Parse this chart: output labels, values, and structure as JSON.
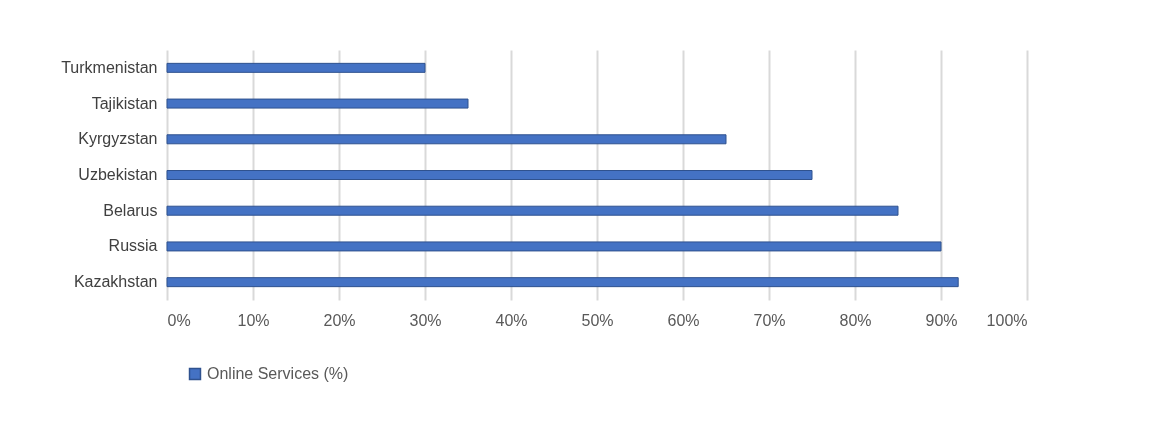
{
  "chart_data": {
    "type": "bar",
    "orientation": "horizontal",
    "categories": [
      "Turkmenistan",
      "Tajikistan",
      "Kyrgyzstan",
      "Uzbekistan",
      "Belarus",
      "Russia",
      "Kazakhstan"
    ],
    "series": [
      {
        "name": "Online Services (%)",
        "color": "#4472c4",
        "values": [
          30,
          35,
          65,
          75,
          85,
          90,
          92
        ]
      }
    ],
    "xlim": [
      0,
      100
    ],
    "xticks": [
      {
        "value": 0,
        "label": "0%"
      },
      {
        "value": 10,
        "label": "10%"
      },
      {
        "value": 20,
        "label": "20%"
      },
      {
        "value": 30,
        "label": "30%"
      },
      {
        "value": 40,
        "label": "40%"
      },
      {
        "value": 50,
        "label": "50%"
      },
      {
        "value": 60,
        "label": "60%"
      },
      {
        "value": 70,
        "label": "70%"
      },
      {
        "value": 80,
        "label": "80%"
      },
      {
        "value": 90,
        "label": "90%"
      },
      {
        "value": 100,
        "label": "100%"
      }
    ],
    "grid": "x",
    "legend": "bottom"
  }
}
